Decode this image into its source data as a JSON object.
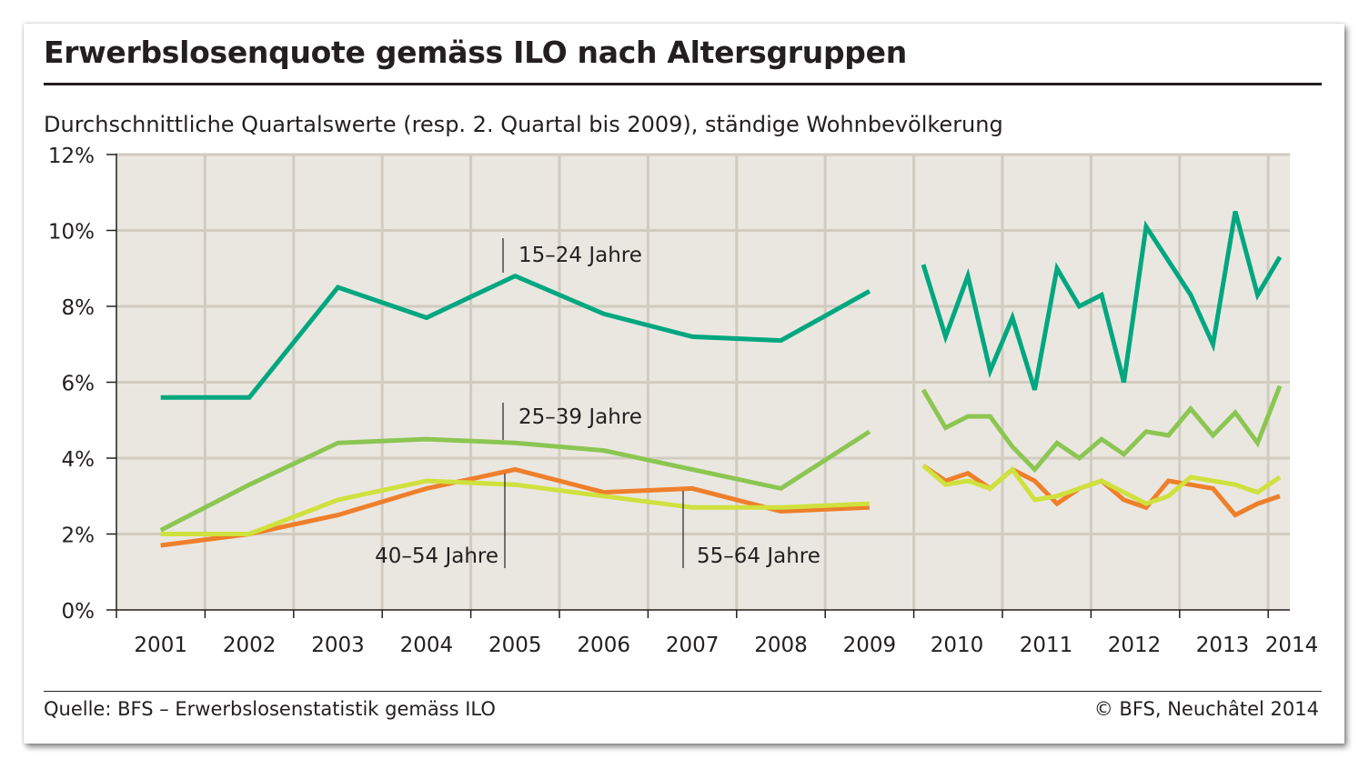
{
  "header": {
    "title": "Erwerbslosenquote gemäss ILO nach Altersgruppen",
    "subtitle": "Durchschnittliche Quartalswerte (resp. 2. Quartal bis 2009), ständige Wohnbevölkerung"
  },
  "footer": {
    "source": "Quelle: BFS – Erwerbslosenstatistik gemäss ILO",
    "copyright": "© BFS, Neuchâtel 2014"
  },
  "chart_data": {
    "type": "line",
    "ylim": [
      0,
      12
    ],
    "yticks": [
      0,
      2,
      4,
      6,
      8,
      10,
      12
    ],
    "ytick_labels": [
      "0%",
      "2%",
      "4%",
      "6%",
      "8%",
      "10%",
      "12%"
    ],
    "x_labels": [
      "2001",
      "2002",
      "2003",
      "2004",
      "2005",
      "2006",
      "2007",
      "2008",
      "2009",
      "2010",
      "2011",
      "2012",
      "2013",
      "2014"
    ],
    "grid": true,
    "colors": {
      "plot_background": "#eae7e1",
      "grid": "#d1cbc0",
      "axis": "#231f20"
    },
    "series": [
      {
        "name": "15–24 Jahre",
        "color": "#00a77f",
        "annual": [
          5.6,
          5.6,
          8.5,
          7.7,
          8.8,
          7.8,
          7.2,
          7.1,
          8.4
        ],
        "quarterly": [
          9.1,
          7.2,
          8.8,
          6.3,
          7.7,
          5.8,
          9.0,
          8.0,
          8.3,
          6.0,
          10.1,
          9.2,
          8.3,
          7.0,
          10.5,
          8.3,
          9.3
        ]
      },
      {
        "name": "25–39 Jahre",
        "color": "#8cc652",
        "annual": [
          2.1,
          3.3,
          4.4,
          4.5,
          4.4,
          4.2,
          3.7,
          3.2,
          4.7
        ],
        "quarterly": [
          5.8,
          4.8,
          5.1,
          5.1,
          4.3,
          3.7,
          4.4,
          4.0,
          4.5,
          4.1,
          4.7,
          4.6,
          5.3,
          4.6,
          5.2,
          4.4,
          5.9
        ]
      },
      {
        "name": "40–54 Jahre",
        "color": "#ee7f2b",
        "annual": [
          1.7,
          2.0,
          2.5,
          3.2,
          3.7,
          3.1,
          3.2,
          2.6,
          2.7
        ],
        "quarterly": [
          3.8,
          3.4,
          3.6,
          3.2,
          3.7,
          3.4,
          2.8,
          3.2,
          3.4,
          2.9,
          2.7,
          3.4,
          3.3,
          3.2,
          2.5,
          2.8,
          3.0
        ]
      },
      {
        "name": "55–64 Jahre",
        "color": "#cfe13d",
        "annual": [
          2.0,
          2.0,
          2.9,
          3.4,
          3.3,
          3.0,
          2.7,
          2.7,
          2.8
        ],
        "quarterly": [
          3.8,
          3.3,
          3.4,
          3.2,
          3.7,
          2.9,
          3.0,
          3.2,
          3.4,
          3.1,
          2.8,
          3.0,
          3.5,
          3.4,
          3.3,
          3.1,
          3.5
        ]
      }
    ]
  }
}
